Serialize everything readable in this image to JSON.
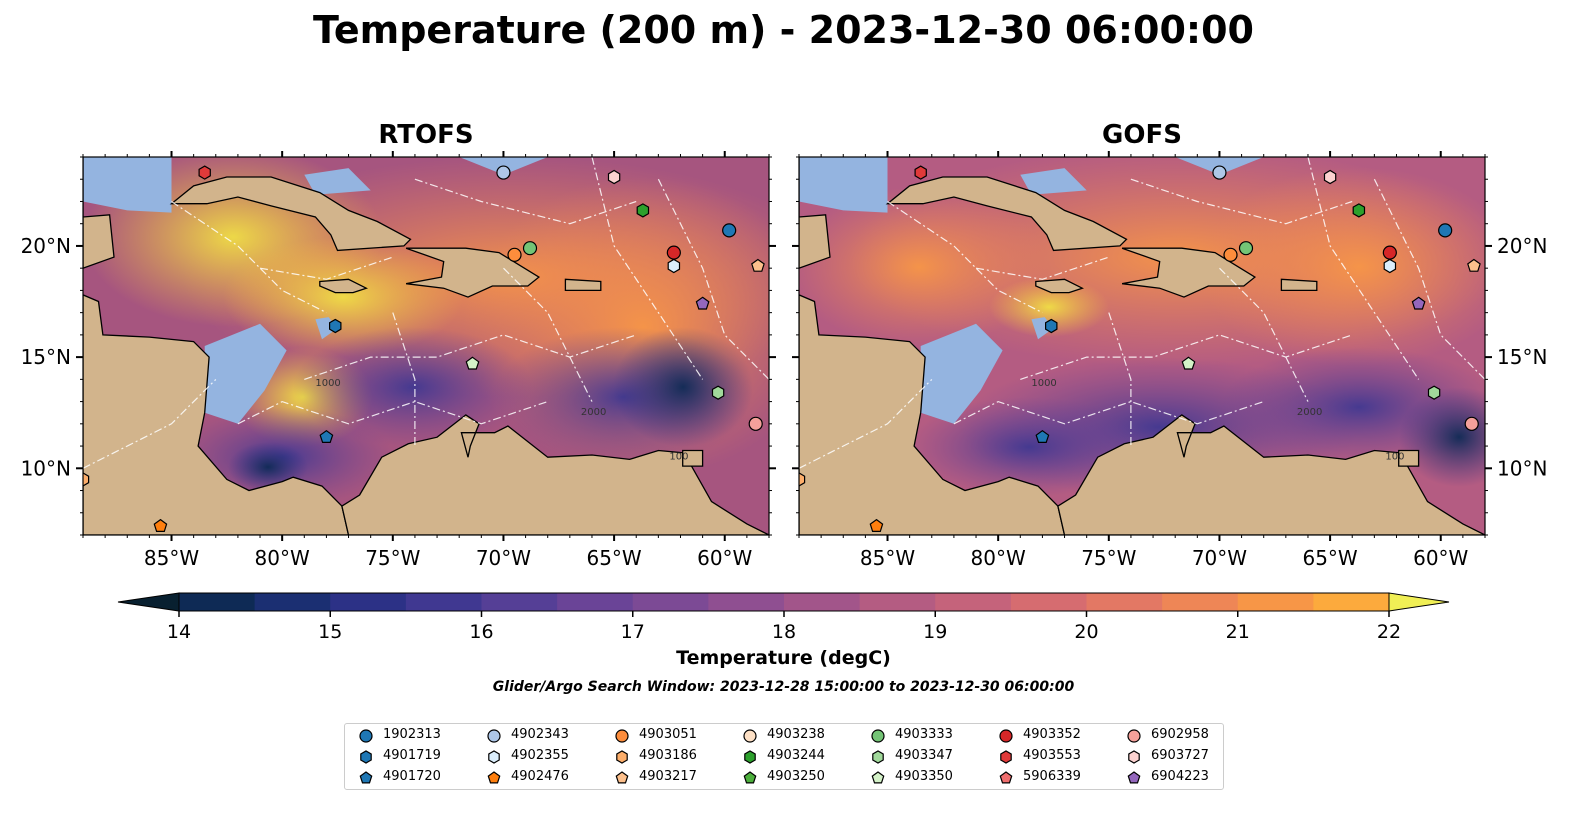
{
  "title": "Temperature (200 m) - 2023-12-30 06:00:00",
  "panels": [
    {
      "title": "RTOFS"
    },
    {
      "title": "GOFS"
    }
  ],
  "map": {
    "lon_range": [
      -89,
      -58
    ],
    "lat_range": [
      7,
      24
    ],
    "lon_ticks": [
      {
        "value": -85,
        "label": "85°W"
      },
      {
        "value": -80,
        "label": "80°W"
      },
      {
        "value": -75,
        "label": "75°W"
      },
      {
        "value": -70,
        "label": "70°W"
      },
      {
        "value": -65,
        "label": "65°W"
      },
      {
        "value": -60,
        "label": "60°W"
      }
    ],
    "lat_ticks": [
      {
        "value": 20,
        "label": "20°N"
      },
      {
        "value": 15,
        "label": "15°N"
      },
      {
        "value": 10,
        "label": "10°N"
      }
    ],
    "contour_labels": [
      "100",
      "1000",
      "2000"
    ],
    "colors": {
      "land": "#d2b48c",
      "shelf": "#94b4e0",
      "ocean_base": "#a6557f"
    }
  },
  "colorbar": {
    "min": 14,
    "max": 22,
    "step": 0.5,
    "ticks": [
      "14",
      "15",
      "16",
      "17",
      "18",
      "19",
      "20",
      "21",
      "22"
    ],
    "label": "Temperature (degC)",
    "colors": [
      "#082030",
      "#0e2a55",
      "#1b2f72",
      "#2c3186",
      "#403891",
      "#553f96",
      "#6a4497",
      "#7c4a95",
      "#8f4f91",
      "#a2558a",
      "#b45c82",
      "#c5637b",
      "#d66c70",
      "#e37864",
      "#ee8656",
      "#f79647",
      "#fcaa3d",
      "#f9c33c",
      "#f0df45"
    ]
  },
  "search_window": "Glider/Argo Search Window: 2023-12-28 15:00:00 to 2023-12-30 06:00:00",
  "legend": [
    {
      "id": "1902313",
      "marker": "circle",
      "color": "#1f77b4"
    },
    {
      "id": "4901719",
      "marker": "hexagon",
      "color": "#1f77b4"
    },
    {
      "id": "4901720",
      "marker": "pentagon",
      "color": "#1f77b4"
    },
    {
      "id": "4902343",
      "marker": "circle",
      "color": "#aec7e8"
    },
    {
      "id": "4902355",
      "marker": "hexagon",
      "color": "#dbeefc"
    },
    {
      "id": "4902476",
      "marker": "pentagon",
      "color": "#ff7f0e"
    },
    {
      "id": "4903051",
      "marker": "circle",
      "color": "#fd8d3c"
    },
    {
      "id": "4903186",
      "marker": "hexagon",
      "color": "#fdae6b"
    },
    {
      "id": "4903217",
      "marker": "pentagon",
      "color": "#fdc08c"
    },
    {
      "id": "4903238",
      "marker": "circle",
      "color": "#fde0c5"
    },
    {
      "id": "4903244",
      "marker": "hexagon",
      "color": "#2ca02c"
    },
    {
      "id": "4903250",
      "marker": "pentagon",
      "color": "#4caf3c"
    },
    {
      "id": "4903333",
      "marker": "circle",
      "color": "#74c476"
    },
    {
      "id": "4903347",
      "marker": "hexagon",
      "color": "#a1d99b"
    },
    {
      "id": "4903350",
      "marker": "pentagon",
      "color": "#d4f2c8"
    },
    {
      "id": "4903352",
      "marker": "circle",
      "color": "#d62728"
    },
    {
      "id": "4903553",
      "marker": "hexagon",
      "color": "#e03a3a"
    },
    {
      "id": "5906339",
      "marker": "pentagon",
      "color": "#ef6e6e"
    },
    {
      "id": "6902958",
      "marker": "circle",
      "color": "#f4a09a"
    },
    {
      "id": "6903727",
      "marker": "hexagon",
      "color": "#fcd2d0"
    },
    {
      "id": "6904223",
      "marker": "pentagon",
      "color": "#9467bd"
    }
  ],
  "floats_on_map": [
    {
      "id": "4903553",
      "lon": -83.5,
      "lat": 23.3
    },
    {
      "id": "4902343",
      "lon": -70.0,
      "lat": 23.3
    },
    {
      "id": "6903727",
      "lon": -65.0,
      "lat": 23.1
    },
    {
      "id": "4903244",
      "lon": -63.7,
      "lat": 21.6
    },
    {
      "id": "1902313",
      "lon": -59.8,
      "lat": 20.7
    },
    {
      "id": "4903333",
      "lon": -68.8,
      "lat": 19.9
    },
    {
      "id": "4903051",
      "lon": -69.5,
      "lat": 19.6
    },
    {
      "id": "4903352",
      "lon": -62.3,
      "lat": 19.7
    },
    {
      "id": "4902355",
      "lon": -62.3,
      "lat": 19.1
    },
    {
      "id": "4903217",
      "lon": -58.5,
      "lat": 19.1
    },
    {
      "id": "6904223",
      "lon": -61.0,
      "lat": 17.4
    },
    {
      "id": "4901719",
      "lon": -77.6,
      "lat": 16.4
    },
    {
      "id": "4903350",
      "lon": -71.4,
      "lat": 14.7
    },
    {
      "id": "4903347",
      "lon": -60.3,
      "lat": 13.4
    },
    {
      "id": "6902958",
      "lon": -58.6,
      "lat": 12.0
    },
    {
      "id": "4901720",
      "lon": -78.0,
      "lat": 11.4
    },
    {
      "id": "4902476",
      "lon": -85.5,
      "lat": 7.4
    },
    {
      "id": "4903186",
      "lon": -89.0,
      "lat": 9.5
    }
  ]
}
